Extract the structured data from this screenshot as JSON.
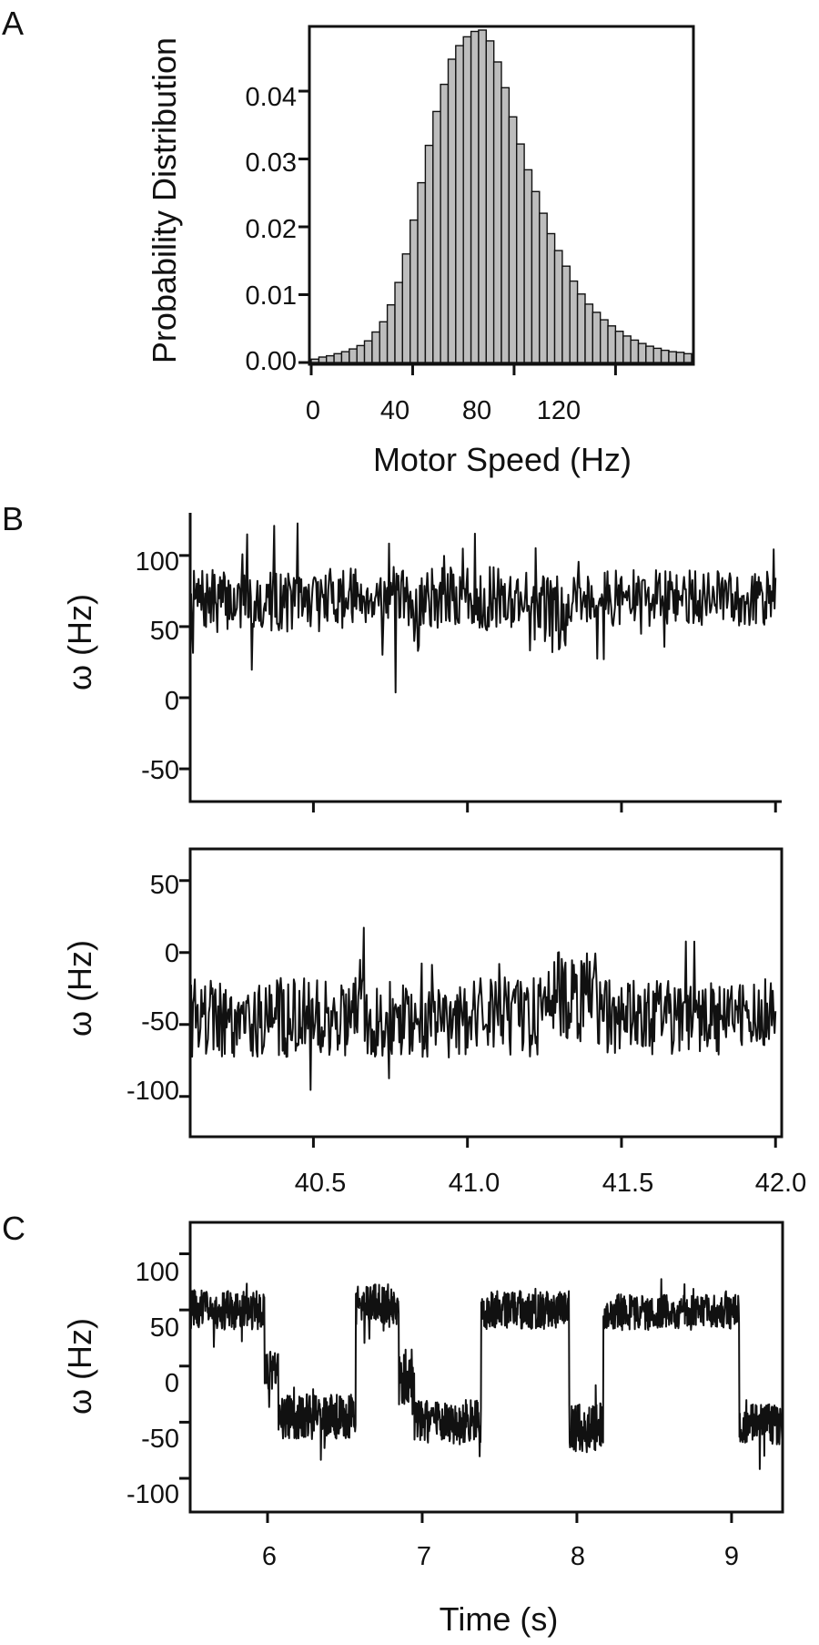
{
  "panels": {
    "a": {
      "letter": "A"
    },
    "b": {
      "letter": "B"
    },
    "c": {
      "letter": "C"
    }
  },
  "chart_data": [
    {
      "id": "panel-a",
      "type": "bar",
      "xlabel": "Motor Speed (Hz)",
      "ylabel": "Probability Distribution",
      "xlim": [
        0,
        150
      ],
      "ylim": [
        0,
        0.049
      ],
      "bin_width": 3,
      "x_ticks": [
        "0",
        "40",
        "80",
        "120"
      ],
      "y_ticks": [
        "0.00",
        "0.01",
        "0.02",
        "0.03",
        "0.04"
      ],
      "bin_starts": [
        0,
        3,
        6,
        9,
        12,
        15,
        18,
        21,
        24,
        27,
        30,
        33,
        36,
        39,
        42,
        45,
        48,
        51,
        54,
        57,
        60,
        63,
        66,
        69,
        72,
        75,
        78,
        81,
        84,
        87,
        90,
        93,
        96,
        99,
        102,
        105,
        108,
        111,
        114,
        117,
        120,
        123,
        126,
        129,
        132,
        135,
        138,
        141,
        144,
        147
      ],
      "values": [
        0.0005,
        0.0008,
        0.001,
        0.0013,
        0.0016,
        0.002,
        0.0025,
        0.0032,
        0.0045,
        0.006,
        0.0085,
        0.0118,
        0.016,
        0.021,
        0.0265,
        0.032,
        0.037,
        0.041,
        0.0447,
        0.0467,
        0.048,
        0.0488,
        0.049,
        0.0474,
        0.0443,
        0.0405,
        0.0362,
        0.0322,
        0.0284,
        0.0252,
        0.022,
        0.019,
        0.0165,
        0.0142,
        0.012,
        0.0101,
        0.0086,
        0.0074,
        0.0063,
        0.0054,
        0.0046,
        0.0039,
        0.0033,
        0.0028,
        0.0024,
        0.0021,
        0.0018,
        0.0016,
        0.0015,
        0.0013
      ]
    },
    {
      "id": "panel-b-top",
      "type": "line",
      "ylabel": "ω (Hz)",
      "xlim": [
        40.1,
        42.02
      ],
      "ylim": [
        -73,
        130
      ],
      "y_ticks": [
        "100",
        "50",
        "0",
        "-50"
      ],
      "x_tick_values": [
        40.5,
        41.0,
        41.5,
        42.0
      ],
      "segments": [
        {
          "t0": 40.1,
          "t1": 40.55,
          "mean": 68,
          "spread": 22
        },
        {
          "t0": 40.55,
          "t1": 40.75,
          "mean": 72,
          "spread": 20
        },
        {
          "t0": 40.75,
          "t1": 40.85,
          "mean": 62,
          "spread": 30
        },
        {
          "t0": 40.85,
          "t1": 41.2,
          "mean": 70,
          "spread": 22
        },
        {
          "t0": 41.2,
          "t1": 41.32,
          "mean": 60,
          "spread": 28
        },
        {
          "t0": 41.32,
          "t1": 42.0,
          "mean": 70,
          "spread": 20
        }
      ],
      "samples_per_second": 330,
      "seed": 7
    },
    {
      "id": "panel-b-bottom",
      "type": "line",
      "xlabel": "",
      "ylabel": "ω (Hz)",
      "xlim": [
        40.1,
        42.02
      ],
      "ylim": [
        -128,
        72
      ],
      "x_ticks": [
        "40.5",
        "41.0",
        "41.5",
        "42.0"
      ],
      "x_tick_values": [
        40.5,
        41.0,
        41.5,
        42.0
      ],
      "y_ticks": [
        "50",
        "0",
        "-50",
        "-100"
      ],
      "segments": [
        {
          "t0": 40.1,
          "t1": 41.25,
          "mean": -45,
          "spread": 28
        },
        {
          "t0": 41.25,
          "t1": 41.42,
          "mean": -30,
          "spread": 32
        },
        {
          "t0": 41.42,
          "t1": 42.0,
          "mean": -45,
          "spread": 26
        }
      ],
      "samples_per_second": 330,
      "seed": 19
    },
    {
      "id": "panel-c",
      "type": "line",
      "xlabel": "Time (s)",
      "ylabel": "ω (Hz)",
      "xlim": [
        5.5,
        9.33
      ],
      "ylim": [
        -130,
        128
      ],
      "x_ticks": [
        "6",
        "7",
        "8",
        "9"
      ],
      "x_tick_values": [
        6,
        7,
        8,
        9
      ],
      "y_ticks": [
        "100",
        "50",
        "0",
        "-50",
        "-100"
      ],
      "segments": [
        {
          "t0": 5.5,
          "t1": 5.98,
          "mean": 50,
          "spread": 18
        },
        {
          "t0": 5.98,
          "t1": 6.07,
          "mean": -5,
          "spread": 18
        },
        {
          "t0": 6.07,
          "t1": 6.57,
          "mean": -45,
          "spread": 20
        },
        {
          "t0": 6.57,
          "t1": 6.85,
          "mean": 55,
          "spread": 18
        },
        {
          "t0": 6.85,
          "t1": 6.95,
          "mean": -10,
          "spread": 25
        },
        {
          "t0": 6.95,
          "t1": 7.38,
          "mean": -50,
          "spread": 20
        },
        {
          "t0": 7.38,
          "t1": 7.95,
          "mean": 50,
          "spread": 17
        },
        {
          "t0": 7.95,
          "t1": 8.17,
          "mean": -55,
          "spread": 22
        },
        {
          "t0": 8.17,
          "t1": 9.05,
          "mean": 48,
          "spread": 16
        },
        {
          "t0": 9.05,
          "t1": 9.33,
          "mean": -50,
          "spread": 20
        }
      ],
      "samples_per_second": 380,
      "seed": 31
    }
  ]
}
